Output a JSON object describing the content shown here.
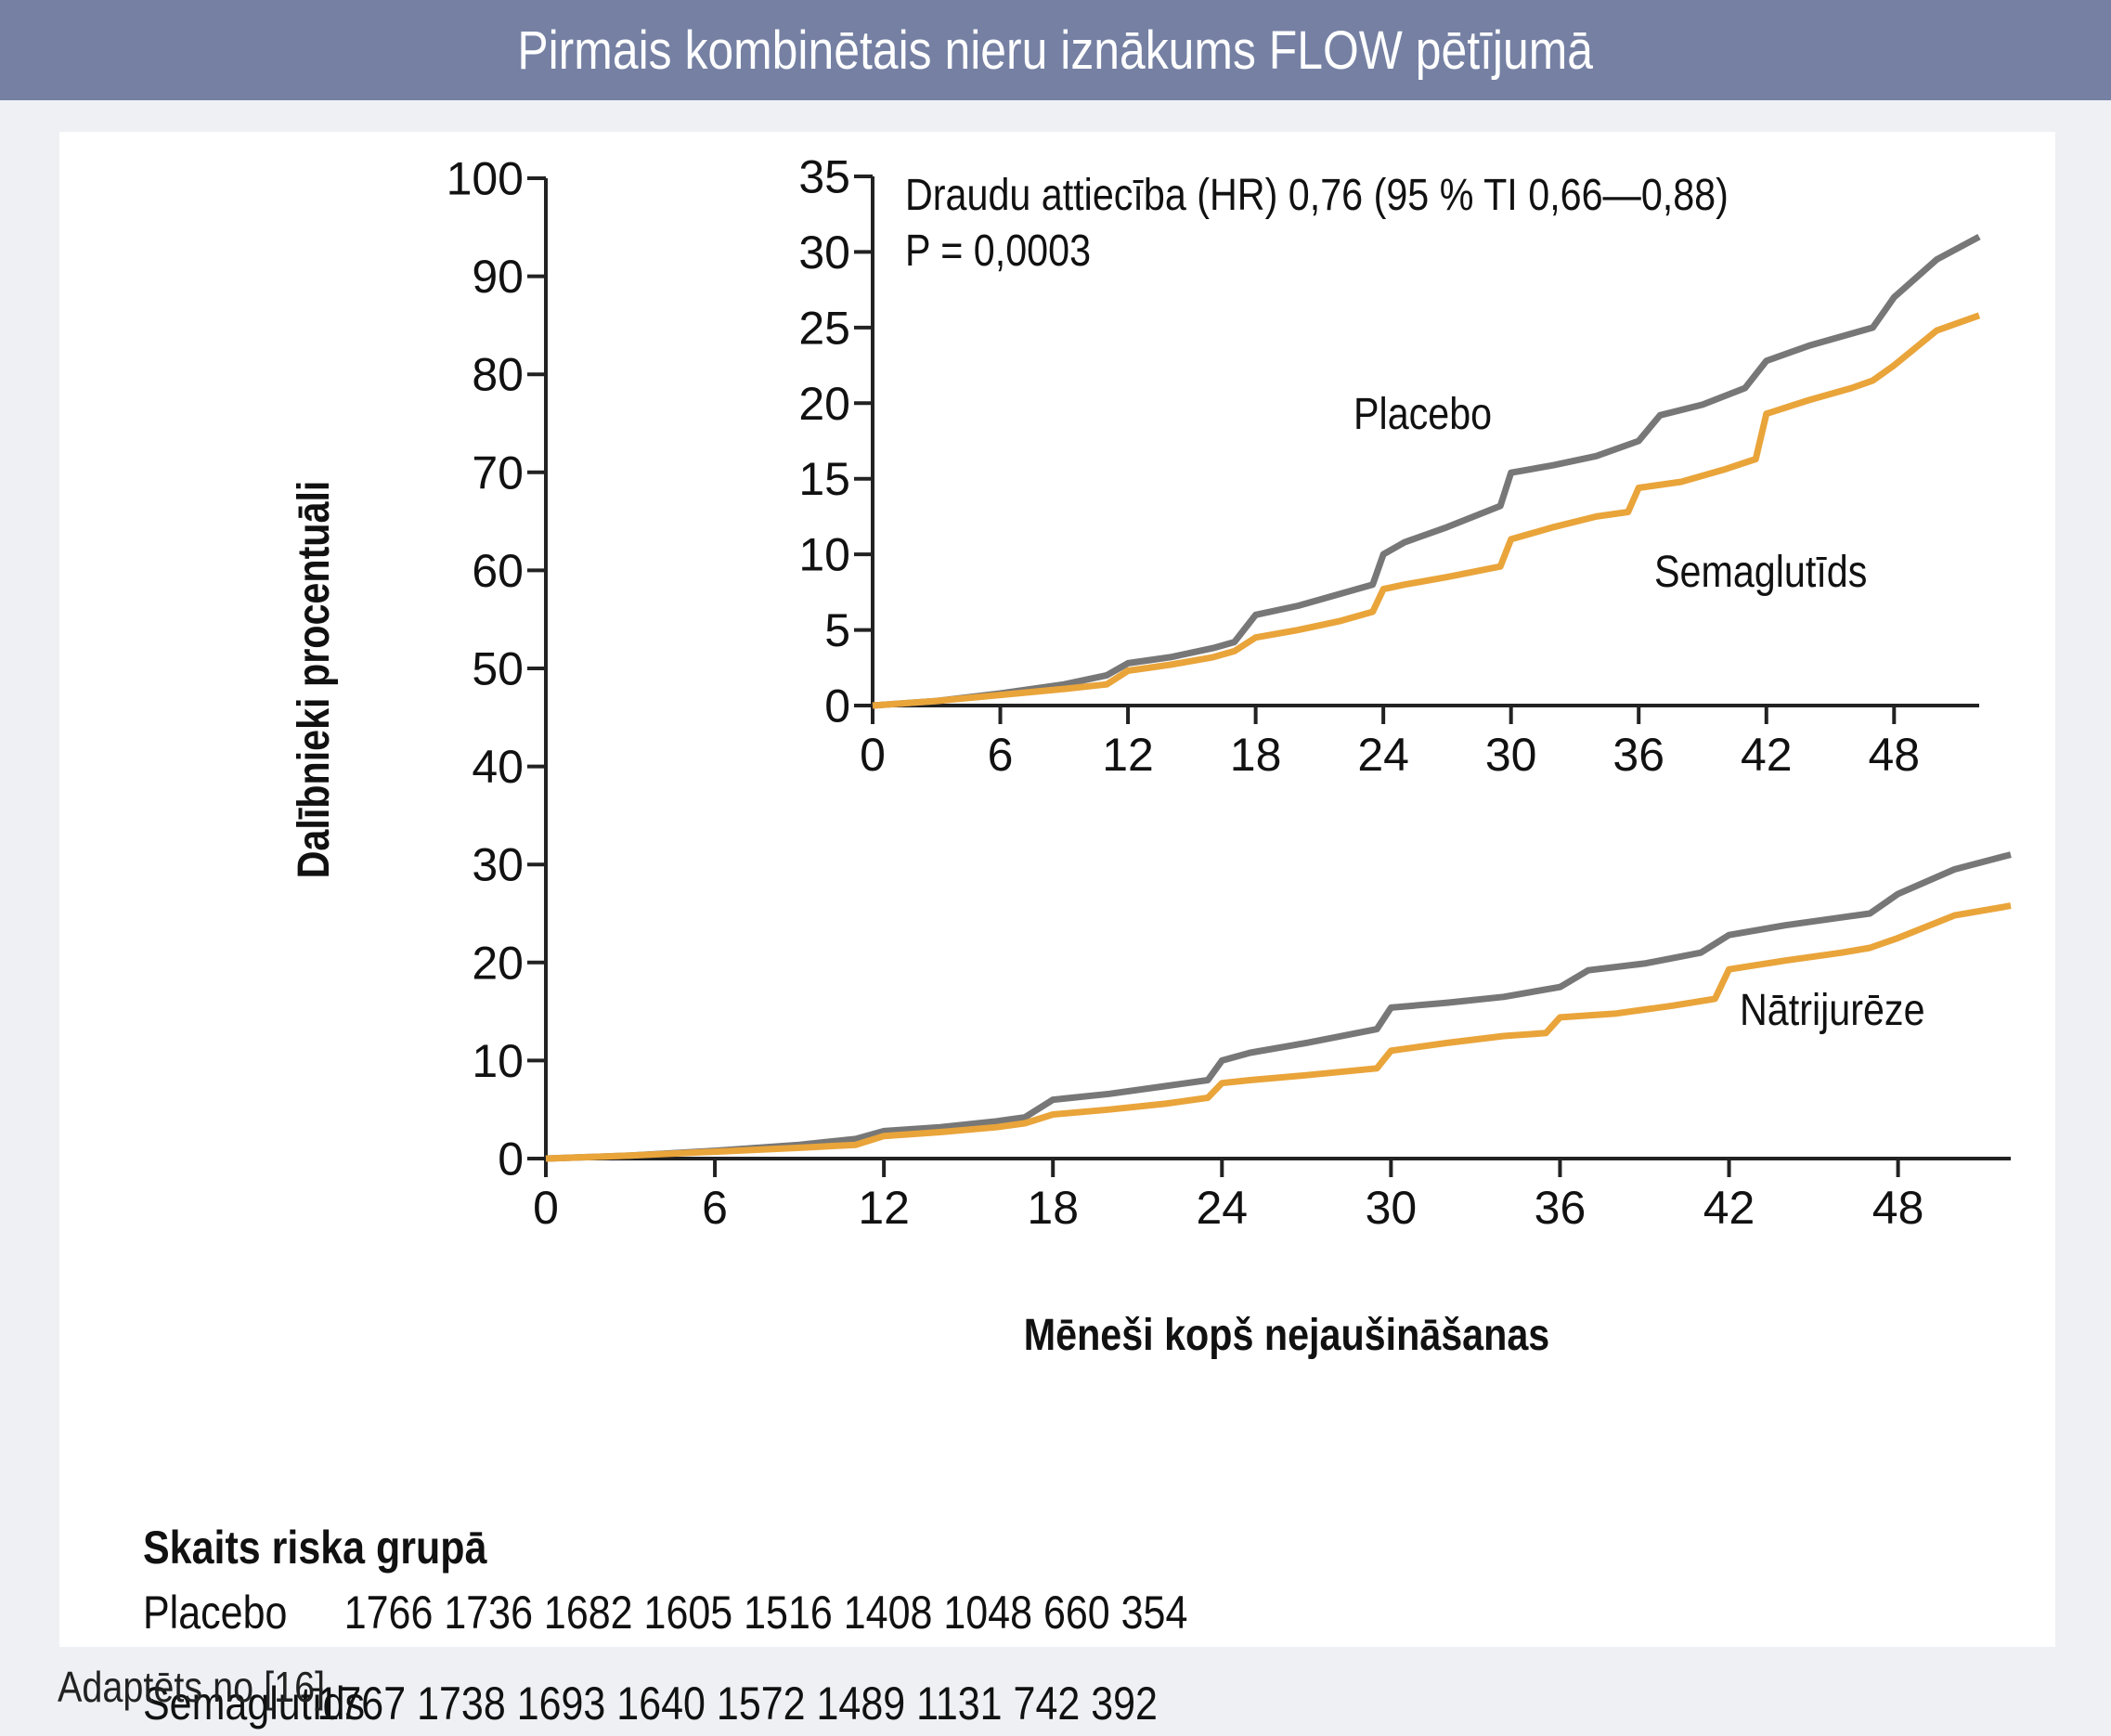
{
  "title": "Pirmais kombinētais nieru iznākums FLOW pētījumā",
  "source_note": "Adaptēts no [16]",
  "risk_table": {
    "title": "Skaits riska grupā",
    "rows": [
      {
        "label": "Placebo",
        "values": "1766 1736 1682 1605 1516 1408 1048 660 354"
      },
      {
        "label": "Semaglutīds",
        "values": "1767 1738 1693 1640 1572 1489 1131 742 392"
      }
    ]
  },
  "chart_data": {
    "type": "line",
    "ylabel": "Dalībnieki procentuāli",
    "xlabel": "Mēneši kopš nejaušināšanas",
    "main": {
      "xlim": [
        0,
        52
      ],
      "ylim": [
        0,
        100
      ],
      "xticks": [
        "0",
        "6",
        "12",
        "18",
        "24",
        "30",
        "36",
        "42",
        "48"
      ],
      "yticks": [
        "0",
        "10",
        "20",
        "30",
        "40",
        "50",
        "60",
        "70",
        "80",
        "90",
        "100"
      ],
      "annotation": "Nātrijurēze"
    },
    "inset": {
      "xlim": [
        0,
        52
      ],
      "ylim": [
        0,
        35
      ],
      "xticks": [
        "0",
        "6",
        "12",
        "18",
        "24",
        "30",
        "36",
        "42",
        "48"
      ],
      "yticks": [
        "0",
        "5",
        "10",
        "15",
        "20",
        "25",
        "30",
        "35"
      ],
      "annotation_lines": [
        "Draudu attiecība (HR) 0,76 (95 % TI 0,66—0,88)",
        "P = 0,0003"
      ],
      "series_labels": [
        "Placebo",
        "Semaglutīds"
      ]
    },
    "series": [
      {
        "name": "Placebo",
        "color": "#777777",
        "x": [
          0,
          3,
          6,
          9,
          11,
          12,
          14,
          16,
          17,
          18,
          20,
          22,
          23.5,
          24,
          25,
          27,
          29.5,
          30,
          32,
          34,
          36,
          37,
          39,
          41,
          42,
          44,
          46,
          47,
          48,
          50,
          52
        ],
        "y": [
          0,
          0.3,
          0.8,
          1.4,
          2.0,
          2.8,
          3.2,
          3.8,
          4.2,
          6.0,
          6.6,
          7.4,
          8.0,
          10.0,
          10.8,
          11.8,
          13.2,
          15.4,
          15.9,
          16.5,
          17.5,
          19.2,
          19.9,
          21.0,
          22.8,
          23.8,
          24.6,
          25.0,
          27.0,
          29.5,
          31.0
        ]
      },
      {
        "name": "Semaglutīds",
        "color": "#e9a43a",
        "x": [
          0,
          3,
          6,
          9,
          11,
          12,
          14,
          16,
          17,
          18,
          20,
          22,
          23.5,
          24,
          25,
          27,
          29.5,
          30,
          32,
          34,
          35.5,
          36,
          38,
          40,
          41.5,
          42,
          44,
          46,
          47,
          48,
          50,
          52
        ],
        "y": [
          0,
          0.3,
          0.7,
          1.1,
          1.4,
          2.3,
          2.7,
          3.2,
          3.6,
          4.5,
          5.0,
          5.6,
          6.2,
          7.7,
          8.0,
          8.5,
          9.2,
          11.0,
          11.8,
          12.5,
          12.8,
          14.4,
          14.8,
          15.6,
          16.3,
          19.3,
          20.2,
          21.0,
          21.5,
          22.5,
          24.8,
          25.8
        ]
      }
    ]
  }
}
